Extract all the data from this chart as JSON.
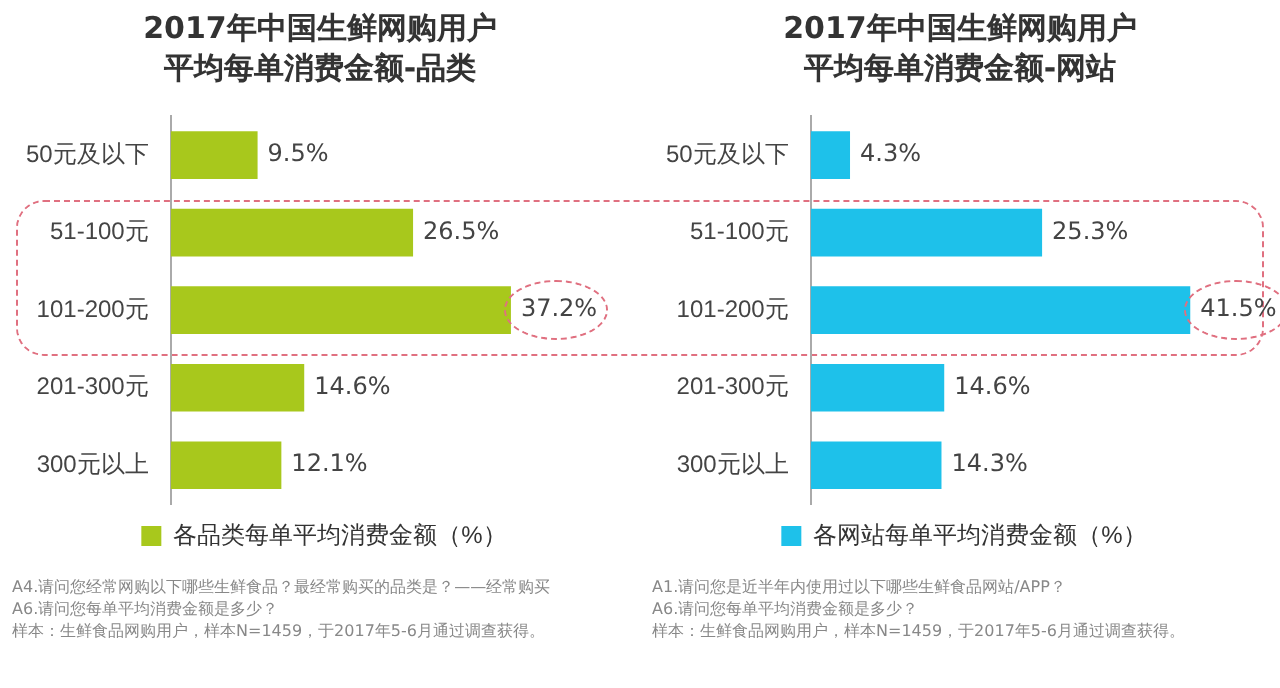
{
  "chart_data": [
    {
      "type": "bar",
      "orientation": "horizontal",
      "title": "2017年中国生鲜网购用户平均每单消费金额-品类",
      "categories": [
        "50元及以下",
        "51-100元",
        "101-200元",
        "201-300元",
        "300元以上"
      ],
      "series": [
        {
          "name": "各品类每单平均消费金额（%）",
          "color": "#a8c81c",
          "values": [
            9.5,
            26.5,
            37.2,
            14.6,
            12.1
          ],
          "value_labels": [
            "9.5%",
            "26.5%",
            "37.2%",
            "14.6%",
            "12.1%"
          ]
        }
      ],
      "legend": "bottom",
      "tick_labels": "y",
      "annotations": [
        "A4.请问您经常网购以下哪些生鲜食品？最经常购买的品类是？——经常购买",
        "A6.请问您每单平均消费金额是多少？",
        "样本：生鲜食品网购用户，样本N=1459，于2017年5-6月通过调查获得。"
      ]
    },
    {
      "type": "bar",
      "orientation": "horizontal",
      "title": "2017年中国生鲜网购用户平均每单消费金额-网站",
      "categories": [
        "50元及以下",
        "51-100元",
        "101-200元",
        "201-300元",
        "300元以上"
      ],
      "series": [
        {
          "name": "各网站每单平均消费金额（%）",
          "color": "#1ec1ea",
          "values": [
            4.3,
            25.3,
            41.5,
            14.6,
            14.3
          ],
          "value_labels": [
            "4.3%",
            "25.3%",
            "41.5%",
            "14.6%",
            "14.3%"
          ]
        }
      ],
      "legend": "bottom",
      "tick_labels": "y",
      "annotations": [
        "A1.请问您是近半年内使用过以下哪些生鲜食品网站/APP？",
        "A6.请问您每单平均消费金额是多少？",
        "样本：生鲜食品网购用户，样本N=1459，于2017年5-6月通过调查获得。"
      ]
    }
  ]
}
